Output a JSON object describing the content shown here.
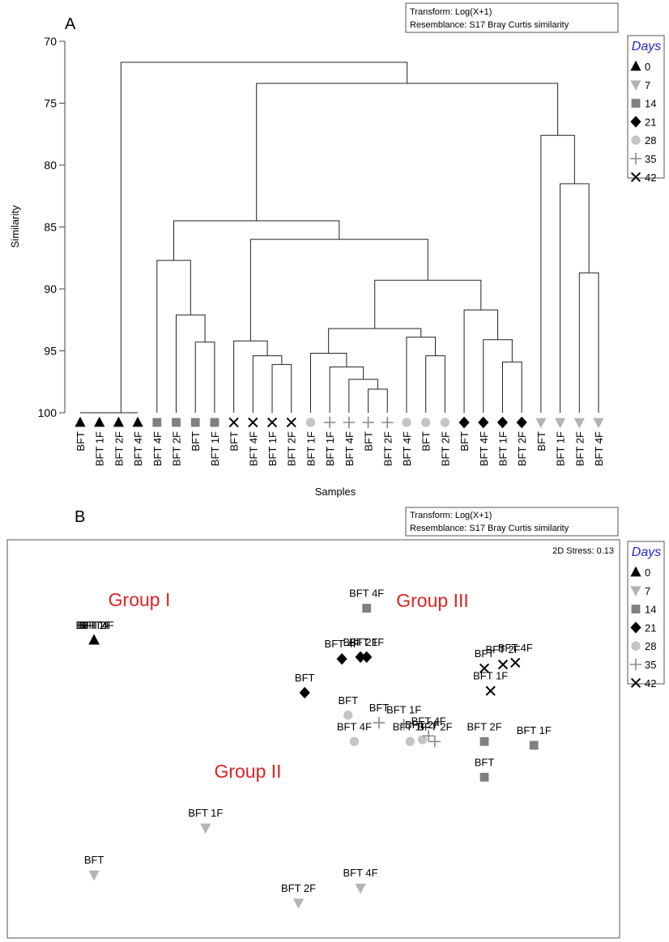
{
  "panel_a": {
    "label": "A",
    "info_lines": [
      "Transform: Log(X+1)",
      "Resemblance: S17 Bray Curtis similarity"
    ],
    "chart_data": {
      "type": "dendrogram",
      "ylabel": "Similarity",
      "xlabel": "Samples",
      "ylim": [
        70,
        100
      ],
      "y_ticks": [
        "70",
        "75",
        "80",
        "85",
        "90",
        "95",
        "100"
      ],
      "leaves": [
        {
          "label": "BFT",
          "day": "0"
        },
        {
          "label": "BFT 1F",
          "day": "0"
        },
        {
          "label": "BFT 2F",
          "day": "0"
        },
        {
          "label": "BFT 4F",
          "day": "0"
        },
        {
          "label": "BFT 4F",
          "day": "14"
        },
        {
          "label": "BFT 2F",
          "day": "14"
        },
        {
          "label": "BFT",
          "day": "14"
        },
        {
          "label": "BFT 1F",
          "day": "14"
        },
        {
          "label": "BFT",
          "day": "42"
        },
        {
          "label": "BFT 4F",
          "day": "42"
        },
        {
          "label": "BFT 1F",
          "day": "42"
        },
        {
          "label": "BFT 2F",
          "day": "42"
        },
        {
          "label": "BFT 1F",
          "day": "28"
        },
        {
          "label": "BFT 1F",
          "day": "35"
        },
        {
          "label": "BFT 4F",
          "day": "35"
        },
        {
          "label": "BFT",
          "day": "35"
        },
        {
          "label": "BFT 2F",
          "day": "35"
        },
        {
          "label": "BFT 4F",
          "day": "28"
        },
        {
          "label": "BFT",
          "day": "28"
        },
        {
          "label": "BFT 2F",
          "day": "28"
        },
        {
          "label": "BFT",
          "day": "21"
        },
        {
          "label": "BFT 4F",
          "day": "21"
        },
        {
          "label": "BFT 1F",
          "day": "21"
        },
        {
          "label": "BFT 2F",
          "day": "21"
        },
        {
          "label": "BFT",
          "day": "7"
        },
        {
          "label": "BFT 1F",
          "day": "7"
        },
        {
          "label": "BFT 2F",
          "day": "7"
        },
        {
          "label": "BFT 4F",
          "day": "7"
        }
      ],
      "merges": [
        {
          "a": "L0",
          "b": "L1",
          "sim": 100
        },
        {
          "a": "N0",
          "b": "L2",
          "sim": 100
        },
        {
          "a": "N1",
          "b": "L3",
          "sim": 100
        },
        {
          "a": "L6",
          "b": "L7",
          "sim": 94.3
        },
        {
          "a": "L5",
          "b": "N3",
          "sim": 92.1
        },
        {
          "a": "L4",
          "b": "N4",
          "sim": 87.7
        },
        {
          "a": "L10",
          "b": "L11",
          "sim": 96.1
        },
        {
          "a": "L9",
          "b": "N6",
          "sim": 95.4
        },
        {
          "a": "L8",
          "b": "N7",
          "sim": 94.2
        },
        {
          "a": "L15",
          "b": "L16",
          "sim": 98.1
        },
        {
          "a": "L14",
          "b": "N9",
          "sim": 97.3
        },
        {
          "a": "L13",
          "b": "N10",
          "sim": 96.3
        },
        {
          "a": "L12",
          "b": "N11",
          "sim": 95.2
        },
        {
          "a": "L18",
          "b": "L19",
          "sim": 95.4
        },
        {
          "a": "L17",
          "b": "N13",
          "sim": 93.9
        },
        {
          "a": "N12",
          "b": "N14",
          "sim": 93.2
        },
        {
          "a": "L22",
          "b": "L23",
          "sim": 95.9
        },
        {
          "a": "L21",
          "b": "N16",
          "sim": 94.1
        },
        {
          "a": "L20",
          "b": "N17",
          "sim": 91.7
        },
        {
          "a": "N15",
          "b": "N18",
          "sim": 89.3
        },
        {
          "a": "N8",
          "b": "N19",
          "sim": 86.0
        },
        {
          "a": "N5",
          "b": "N20",
          "sim": 84.5
        },
        {
          "a": "L26",
          "b": "L27",
          "sim": 88.7
        },
        {
          "a": "L25",
          "b": "N22",
          "sim": 81.5
        },
        {
          "a": "L24",
          "b": "N23",
          "sim": 77.6
        },
        {
          "a": "N21",
          "b": "N24",
          "sim": 73.4
        },
        {
          "a": "N2",
          "b": "N25",
          "sim": 71.7
        }
      ]
    }
  },
  "panel_b": {
    "label": "B",
    "info_lines": [
      "Transform: Log(X+1)",
      "Resemblance: S17 Bray Curtis similarity"
    ],
    "stress_text": "2D Stress: 0.13",
    "group_labels": [
      "Group I",
      "Group II",
      "Group III"
    ],
    "chart_data": {
      "type": "scatter",
      "title": "",
      "points": [
        {
          "label": "BFT",
          "day": "0",
          "x": 0.14,
          "y": 0.5
        },
        {
          "label": "BFT 1F",
          "day": "0",
          "x": 0.14,
          "y": 0.5
        },
        {
          "label": "BFT 2F",
          "day": "0",
          "x": 0.14,
          "y": 0.5
        },
        {
          "label": "BFT 4F",
          "day": "0",
          "x": 0.14,
          "y": 0.5
        },
        {
          "label": "BFT",
          "day": "7",
          "x": 0.14,
          "y": -0.75
        },
        {
          "label": "BFT 1F",
          "day": "7",
          "x": 0.32,
          "y": -0.5
        },
        {
          "label": "BFT 2F",
          "day": "7",
          "x": 0.47,
          "y": -0.9
        },
        {
          "label": "BFT 4F",
          "day": "7",
          "x": 0.57,
          "y": -0.82
        },
        {
          "label": "BFT 4F",
          "day": "14",
          "x": 0.58,
          "y": 0.67
        },
        {
          "label": "BFT 2F",
          "day": "14",
          "x": 0.77,
          "y": -0.04
        },
        {
          "label": "BFT 1F",
          "day": "14",
          "x": 0.85,
          "y": -0.06
        },
        {
          "label": "BFT",
          "day": "14",
          "x": 0.77,
          "y": -0.23
        },
        {
          "label": "BFT",
          "day": "21",
          "x": 0.48,
          "y": 0.22
        },
        {
          "label": "BFT 4F",
          "day": "21",
          "x": 0.54,
          "y": 0.4
        },
        {
          "label": "BFT 2F",
          "day": "21",
          "x": 0.57,
          "y": 0.41
        },
        {
          "label": "BFT 1F",
          "day": "21",
          "x": 0.58,
          "y": 0.41
        },
        {
          "label": "BFT",
          "day": "28",
          "x": 0.55,
          "y": 0.1
        },
        {
          "label": "BFT 4F",
          "day": "28",
          "x": 0.56,
          "y": -0.04
        },
        {
          "label": "BFT 1F",
          "day": "28",
          "x": 0.65,
          "y": -0.04
        },
        {
          "label": "BFT 2F",
          "day": "28",
          "x": 0.67,
          "y": -0.03
        },
        {
          "label": "BFT",
          "day": "35",
          "x": 0.6,
          "y": 0.06
        },
        {
          "label": "BFT 1F",
          "day": "35",
          "x": 0.64,
          "y": 0.05
        },
        {
          "label": "BFT 4F",
          "day": "35",
          "x": 0.68,
          "y": -0.01
        },
        {
          "label": "BFT 2F",
          "day": "35",
          "x": 0.69,
          "y": -0.04
        },
        {
          "label": "BFT",
          "day": "42",
          "x": 0.77,
          "y": 0.35
        },
        {
          "label": "BFT 2F",
          "day": "42",
          "x": 0.8,
          "y": 0.37
        },
        {
          "label": "BFT 4F",
          "day": "42",
          "x": 0.82,
          "y": 0.38
        },
        {
          "label": "BFT 1F",
          "day": "42",
          "x": 0.78,
          "y": 0.23
        }
      ]
    }
  },
  "legend": {
    "title": "Days",
    "title_color": "#2222cc",
    "items": [
      {
        "label": "0",
        "marker": "triangle-up",
        "color": "#000000"
      },
      {
        "label": "7",
        "marker": "triangle-down",
        "color": "#b4b4b4"
      },
      {
        "label": "14",
        "marker": "square",
        "color": "#808080"
      },
      {
        "label": "21",
        "marker": "diamond",
        "color": "#000000"
      },
      {
        "label": "28",
        "marker": "circle",
        "color": "#c4c4c4"
      },
      {
        "label": "35",
        "marker": "plus",
        "color": "#8a8a8a"
      },
      {
        "label": "42",
        "marker": "cross",
        "color": "#000000"
      }
    ]
  },
  "colors": {
    "group_label": "#dd2222"
  }
}
